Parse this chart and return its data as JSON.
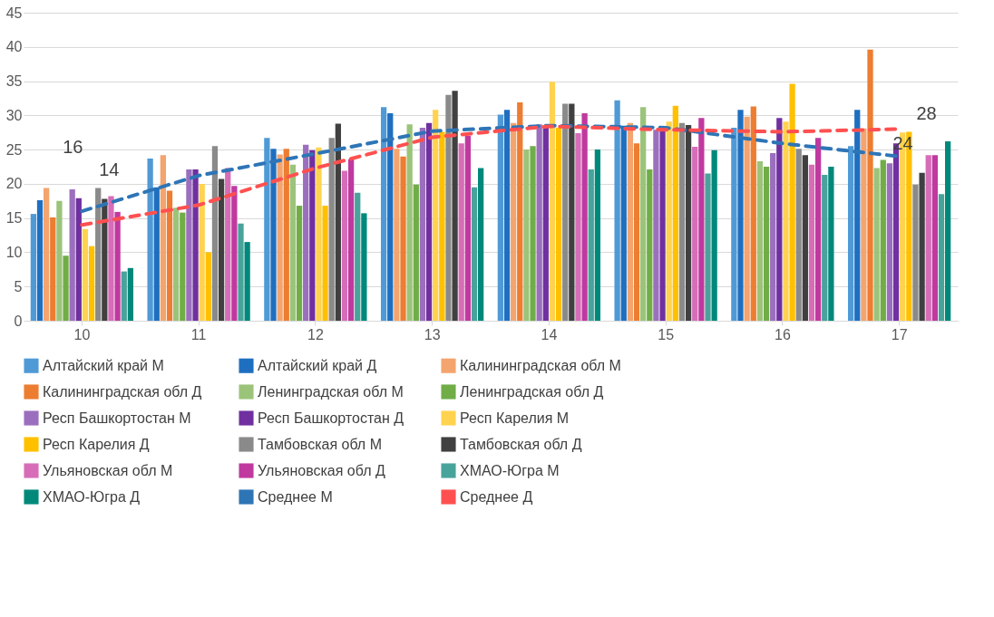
{
  "chart_data": {
    "type": "bar",
    "categories": [
      "10",
      "11",
      "12",
      "13",
      "14",
      "15",
      "16",
      "17"
    ],
    "ylim": [
      0,
      45
    ],
    "yticks": [
      0,
      5,
      10,
      15,
      20,
      25,
      30,
      35,
      40,
      45
    ],
    "grid": "y",
    "legend": "bottom",
    "series": [
      {
        "name": "Алтайский край М",
        "color": "#4f9ad6",
        "values": [
          15.6,
          23.7,
          26.7,
          31.2,
          30.1,
          32.2,
          28.2,
          25.5
        ]
      },
      {
        "name": "Алтайский край Д",
        "color": "#1f6fc0",
        "values": [
          17.6,
          19.5,
          25.1,
          30.3,
          30.8,
          28.5,
          30.8,
          30.8
        ]
      },
      {
        "name": "Калининградская обл М",
        "color": "#f4a46e",
        "values": [
          19.4,
          24.2,
          24.3,
          25.1,
          28.9,
          28.9,
          29.8,
          28.1
        ]
      },
      {
        "name": "Калининградская обл Д",
        "color": "#ed7d31",
        "values": [
          15.1,
          19.0,
          25.1,
          24.0,
          31.9,
          25.9,
          31.3,
          39.6
        ]
      },
      {
        "name": "Ленинградская обл М",
        "color": "#9bc47a",
        "values": [
          17.5,
          16.5,
          22.8,
          28.7,
          25.0,
          31.2,
          23.3,
          22.3
        ]
      },
      {
        "name": "Ленинградская обл Д",
        "color": "#70ad47",
        "values": [
          9.5,
          15.8,
          16.8,
          19.9,
          25.5,
          22.1,
          22.5,
          23.5
        ]
      },
      {
        "name": "Респ Башкортостан М",
        "color": "#9b6fbd",
        "values": [
          19.2,
          22.1,
          25.7,
          28.2,
          28.7,
          27.9,
          24.5,
          23.0
        ]
      },
      {
        "name": "Респ Башкортостан Д",
        "color": "#7030a0",
        "values": [
          17.9,
          22.1,
          24.9,
          28.9,
          28.4,
          27.7,
          29.6,
          25.9
        ]
      },
      {
        "name": "Респ Карелия М",
        "color": "#ffd34f",
        "values": [
          13.4,
          20.0,
          25.3,
          30.8,
          34.9,
          29.1,
          29.1,
          27.5
        ]
      },
      {
        "name": "Респ Карелия Д",
        "color": "#ffc000",
        "values": [
          10.9,
          10.0,
          16.8,
          27.6,
          28.2,
          31.4,
          34.6,
          27.6
        ]
      },
      {
        "name": "Тамбовская обл М",
        "color": "#8a8a8a",
        "values": [
          19.4,
          25.5,
          26.7,
          33.0,
          31.7,
          28.9,
          25.1,
          19.9
        ]
      },
      {
        "name": "Тамбовская обл Д",
        "color": "#404040",
        "values": [
          17.8,
          20.7,
          28.8,
          33.6,
          31.7,
          28.6,
          24.2,
          21.6
        ]
      },
      {
        "name": "Ульяновская обл М",
        "color": "#d76db8",
        "values": [
          18.2,
          22.3,
          21.9,
          25.9,
          27.4,
          25.4,
          22.8,
          24.2
        ]
      },
      {
        "name": "Ульяновская обл Д",
        "color": "#c0399f",
        "values": [
          15.9,
          19.7,
          23.6,
          27.0,
          30.3,
          29.6,
          26.7,
          24.2
        ]
      },
      {
        "name": "ХМАО-Югра М",
        "color": "#48a39b",
        "values": [
          7.2,
          14.2,
          18.7,
          19.5,
          22.1,
          21.5,
          21.3,
          18.5
        ]
      },
      {
        "name": "ХМАО-Югра Д",
        "color": "#00897b",
        "values": [
          7.7,
          11.5,
          15.7,
          22.3,
          25.0,
          24.9,
          22.5,
          26.2
        ]
      },
      {
        "name": "Среднее  М",
        "type": "line",
        "line_style": "dashed",
        "color": "#2e75b6",
        "values": [
          16,
          21.2,
          24.4,
          27.7,
          28.5,
          28.2,
          25.9,
          24
        ],
        "value_labels": [
          "16",
          null,
          null,
          null,
          null,
          null,
          null,
          "24"
        ]
      },
      {
        "name": "Среднее  Д",
        "type": "line",
        "line_style": "dashed",
        "color": "#ff5050",
        "values": [
          14,
          16.9,
          22.3,
          26.8,
          28.4,
          27.9,
          27.6,
          28
        ],
        "value_labels": [
          "14",
          null,
          null,
          null,
          null,
          null,
          null,
          "28"
        ]
      }
    ]
  }
}
